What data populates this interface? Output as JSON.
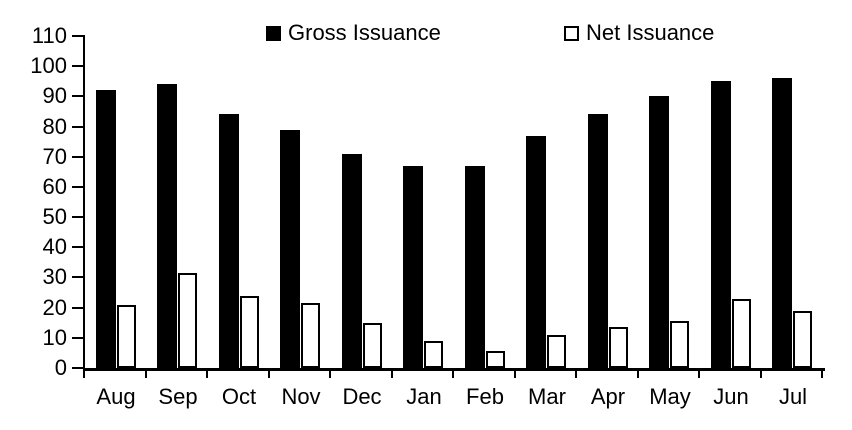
{
  "chart_data": {
    "type": "bar",
    "title": "",
    "xlabel": "",
    "ylabel": "",
    "categories": [
      "Aug",
      "Sep",
      "Oct",
      "Nov",
      "Dec",
      "Jan",
      "Feb",
      "Mar",
      "Apr",
      "May",
      "Jun",
      "Jul"
    ],
    "series": [
      {
        "name": "Gross Issuance",
        "values": [
          92,
          94,
          84,
          79,
          71,
          67,
          67,
          77,
          84,
          90,
          95,
          96
        ],
        "fill": "#000000",
        "stroke": "#000000",
        "swatch": "filled-black-square"
      },
      {
        "name": "Net Issuance",
        "values": [
          21,
          31.5,
          24,
          21.5,
          15,
          9,
          5.5,
          11,
          13.5,
          15.5,
          23,
          19
        ],
        "fill": "#ffffff",
        "stroke": "#000000",
        "swatch": "outlined-white-square"
      }
    ],
    "ylim": [
      0,
      110
    ],
    "yticks": [
      0,
      10,
      20,
      30,
      40,
      50,
      60,
      70,
      80,
      90,
      100,
      110
    ],
    "grid": false,
    "legend_position": "top",
    "axis_color": "#000000",
    "background": "#ffffff"
  }
}
